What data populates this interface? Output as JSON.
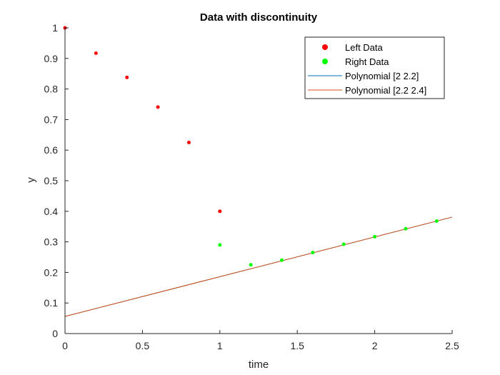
{
  "chart_data": {
    "type": "scatter",
    "title": "Data with discontinuity",
    "xlabel": "time",
    "ylabel": "y",
    "xlim": [
      0,
      2.5
    ],
    "ylim": [
      0,
      1
    ],
    "xticks": [
      "0",
      "0.5",
      "1",
      "1.5",
      "2",
      "2.5"
    ],
    "yticks": [
      "0",
      "0.1",
      "0.2",
      "0.3",
      "0.4",
      "0.5",
      "0.6",
      "0.7",
      "0.8",
      "0.9",
      "1"
    ],
    "grid": false,
    "legend_position": "top-right",
    "series": [
      {
        "name": "Left Data",
        "kind": "points",
        "color": "#ff0000",
        "x": [
          0,
          0.2,
          0.4,
          0.6,
          0.8,
          1.0
        ],
        "y": [
          1.0,
          0.917,
          0.838,
          0.741,
          0.625,
          0.4
        ]
      },
      {
        "name": "Right Data",
        "kind": "points",
        "color": "#00ff00",
        "x": [
          1.0,
          1.2,
          1.4,
          1.6,
          1.8,
          2.0,
          2.2,
          2.4
        ],
        "y": [
          0.29,
          0.225,
          0.24,
          0.265,
          0.292,
          0.317,
          0.343,
          0.368
        ]
      },
      {
        "name": "Polynomial [2 2.2]",
        "kind": "line",
        "color": "#0072bd",
        "x": [
          0,
          2.5
        ],
        "y": [
          0.056,
          0.381
        ]
      },
      {
        "name": "Polynomial [2.2 2.4]",
        "kind": "line",
        "color": "#d95319",
        "x": [
          0,
          2.5
        ],
        "y": [
          0.056,
          0.381
        ]
      }
    ]
  }
}
